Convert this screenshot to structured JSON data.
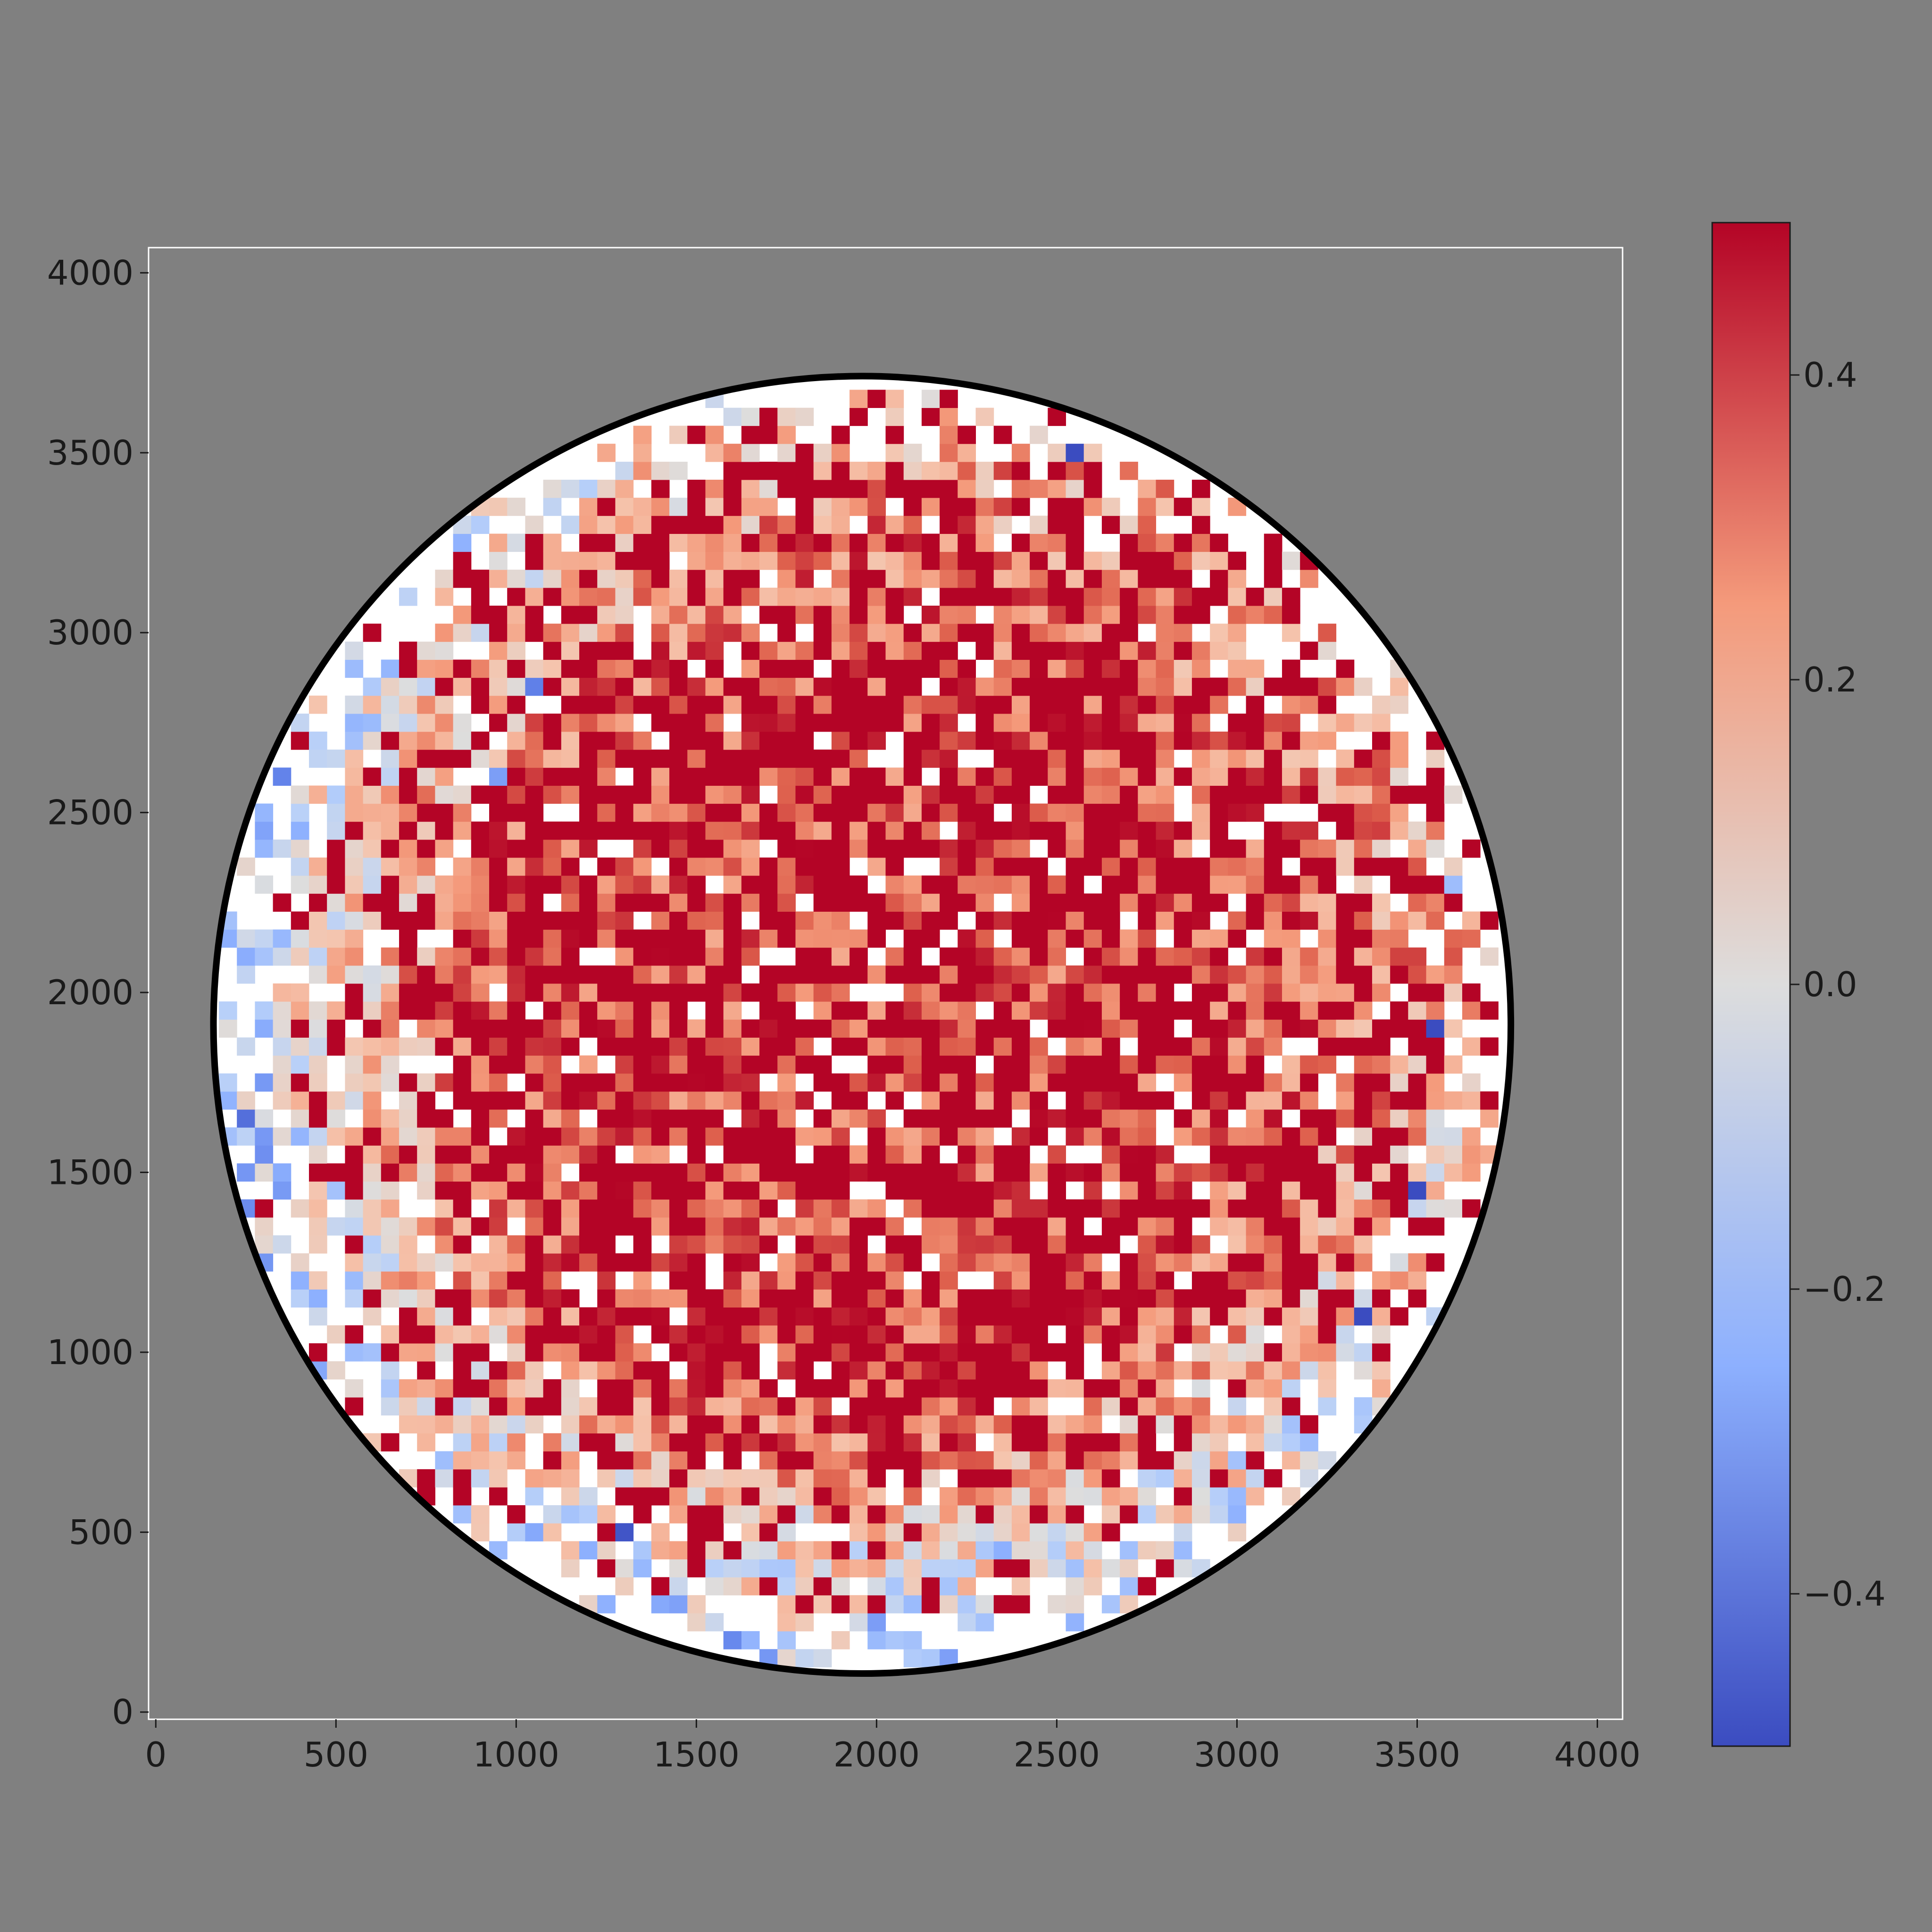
{
  "chart_data": {
    "type": "heatmap",
    "title": "",
    "xlabel": "",
    "ylabel": "",
    "xlim": [
      -20,
      4070
    ],
    "ylim": [
      -20,
      4070
    ],
    "x_ticks": [
      0,
      500,
      1000,
      1500,
      2000,
      2500,
      3000,
      3500,
      4000
    ],
    "y_ticks": [
      0,
      500,
      1000,
      1500,
      2000,
      2500,
      3000,
      3500,
      4000
    ],
    "tick_labels_x": [
      "0",
      "500",
      "1000",
      "1500",
      "2000",
      "2500",
      "3000",
      "3500",
      "4000"
    ],
    "tick_labels_y": [
      "0",
      "500",
      "1000",
      "1500",
      "2000",
      "2500",
      "3000",
      "3500",
      "4000"
    ],
    "grid": false,
    "background_color": "#808080",
    "circle": {
      "cx": 1960,
      "cy": 1910,
      "r": 1800,
      "fill": "#ffffff",
      "edge_color": "#000000"
    },
    "cell_size": 50,
    "colormap": "coolwarm",
    "vmin": -0.5,
    "vmax": 0.5,
    "colorbar": {
      "ticks": [
        -0.4,
        -0.2,
        0.0,
        0.2,
        0.4
      ],
      "tick_labels": [
        "−0.4",
        "−0.2",
        "0.0",
        "0.2",
        "0.4"
      ],
      "location": "right"
    },
    "distribution": "values mostly 0.1 to 0.5+ (saturated red) in centre, lower 0.0 to 0.2 near left and bottom rim, sparse white (empty) cells, a few isolated negative cells",
    "outlier_cells": [
      {
        "x": 2550,
        "y": 3500,
        "value": -0.5
      },
      {
        "x": 1050,
        "y": 2850,
        "value": -0.38
      },
      {
        "x": 950,
        "y": 2600,
        "value": -0.3
      },
      {
        "x": 250,
        "y": 1650,
        "value": -0.42
      },
      {
        "x": 1300,
        "y": 500,
        "value": -0.48
      },
      {
        "x": 3550,
        "y": 1900,
        "value": -0.5
      },
      {
        "x": 3500,
        "y": 1450,
        "value": -0.5
      },
      {
        "x": 3350,
        "y": 1100,
        "value": -0.5
      },
      {
        "x": 3600,
        "y": 2300,
        "value": -0.2
      },
      {
        "x": 2350,
        "y": 450,
        "value": -0.25
      },
      {
        "x": 1350,
        "y": 400,
        "value": -0.22
      }
    ]
  }
}
